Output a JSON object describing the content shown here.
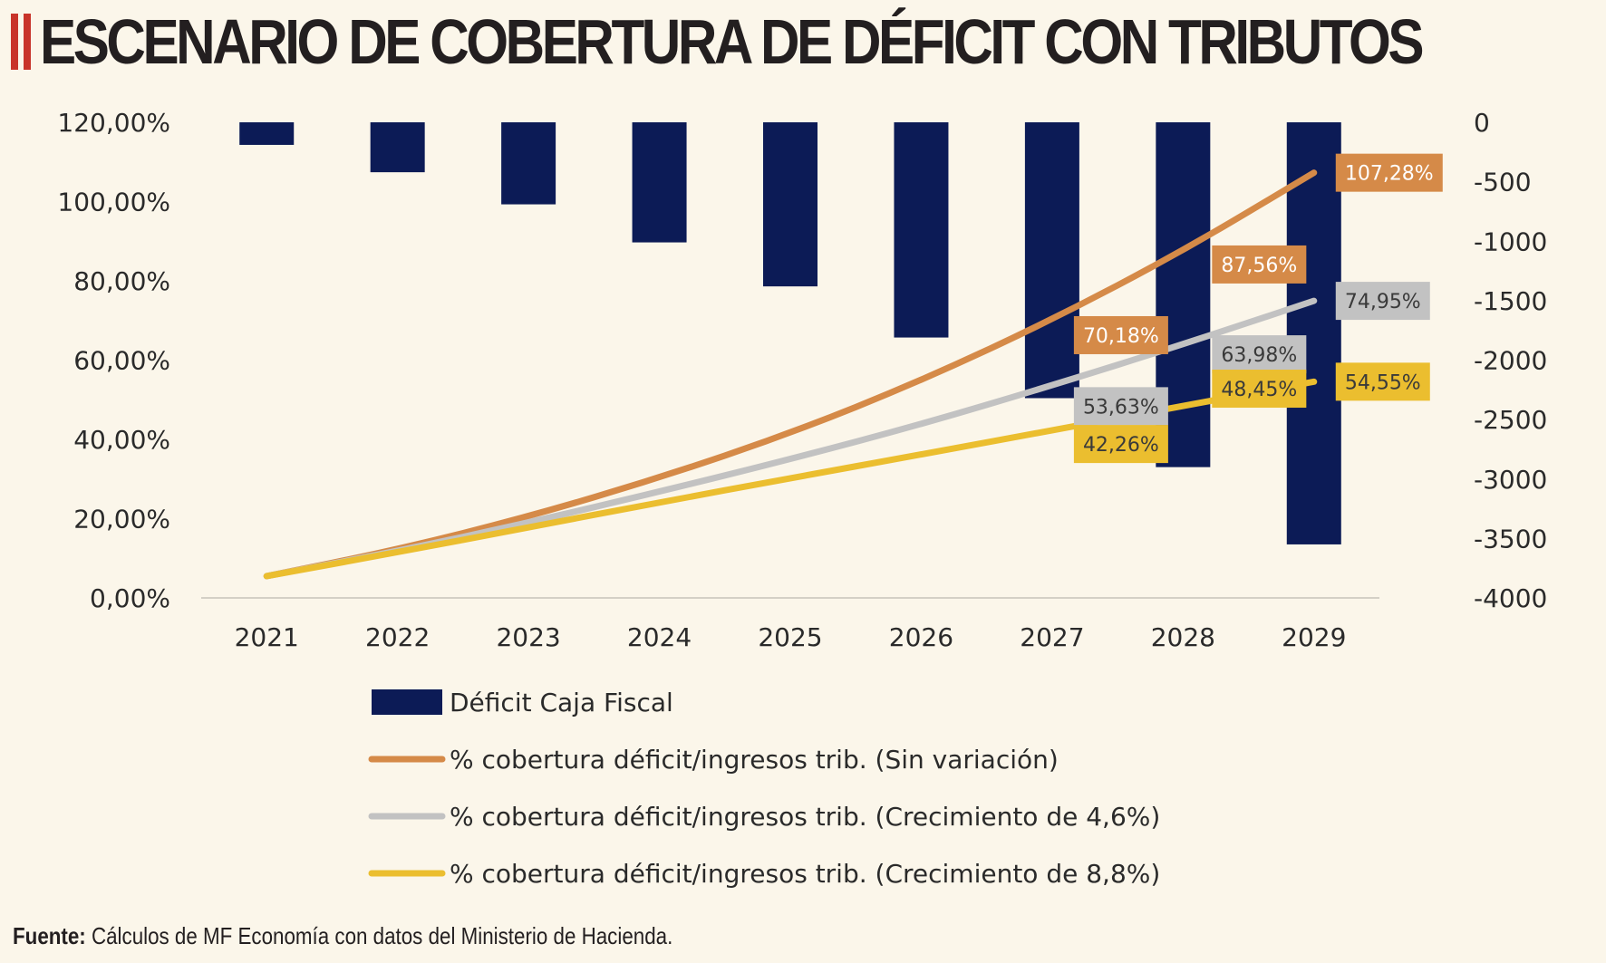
{
  "header": {
    "title": "ESCENARIO DE COBERTURA DE DÉFICIT CON TRIBUTOS"
  },
  "source": {
    "label": "Fuente:",
    "text": "Cálculos de MF Economía con datos del Ministerio de Hacienda."
  },
  "colors": {
    "bars": "#0c1b56",
    "orange": "#d58a48",
    "gray": "#c2c2c2",
    "yellow": "#ebbe2f",
    "axis_text": "#2a2a2a"
  },
  "chart_data": {
    "type": "bar+line",
    "categories": [
      "2021",
      "2022",
      "2023",
      "2024",
      "2025",
      "2026",
      "2027",
      "2028",
      "2029"
    ],
    "left_axis": {
      "min": 0,
      "max": 120,
      "ticks": [
        "0,00%",
        "20,00%",
        "40,00%",
        "60,00%",
        "80,00%",
        "100,00%",
        "120,00%"
      ]
    },
    "right_axis": {
      "min": -4000,
      "max": 0,
      "ticks": [
        "-4000",
        "-3500",
        "-3000",
        "-2500",
        "-2000",
        "-1500",
        "-1000",
        "-500",
        "0"
      ]
    },
    "bar_series": {
      "name": "Déficit Caja Fiscal",
      "values": [
        -190,
        -420,
        -690,
        -1010,
        -1380,
        -1810,
        -2320,
        -2900,
        -3550
      ]
    },
    "line_series": [
      {
        "name": "% cobertura déficit/ingresos trib. (Sin variación)",
        "color_key": "orange",
        "values": [
          5.5,
          12.2,
          20.5,
          30.3,
          41.5,
          54.8,
          70.18,
          87.56,
          107.28
        ],
        "labels": [
          "",
          "",
          "",
          "",
          "",
          "",
          "70,18%",
          "87,56%",
          "107,28%"
        ]
      },
      {
        "name": "% cobertura déficit/ingresos trib. (Crecimiento de 4,6%)",
        "color_key": "gray",
        "values": [
          5.5,
          11.8,
          19.0,
          26.8,
          35.0,
          43.8,
          53.63,
          63.98,
          74.95
        ],
        "labels": [
          "",
          "",
          "",
          "",
          "",
          "",
          "53,63%",
          "63,98%",
          "74,95%"
        ]
      },
      {
        "name": "% cobertura déficit/ingresos trib. (Crecimiento de 8,8%)",
        "color_key": "yellow",
        "values": [
          5.5,
          11.5,
          17.8,
          24.1,
          30.2,
          36.2,
          42.26,
          48.45,
          54.55
        ],
        "labels": [
          "",
          "",
          "",
          "",
          "",
          "",
          "42,26%",
          "48,45%",
          "54,55%"
        ]
      }
    ],
    "legend": [
      {
        "label": "Déficit Caja Fiscal",
        "kind": "bar",
        "color_key": "bars"
      },
      {
        "label": "% cobertura déficit/ingresos trib. (Sin variación)",
        "kind": "line",
        "color_key": "orange"
      },
      {
        "label": "% cobertura déficit/ingresos trib. (Crecimiento de 4,6%)",
        "kind": "line",
        "color_key": "gray"
      },
      {
        "label": "% cobertura déficit/ingresos trib. (Crecimiento de 8,8%)",
        "kind": "line",
        "color_key": "yellow"
      }
    ]
  }
}
